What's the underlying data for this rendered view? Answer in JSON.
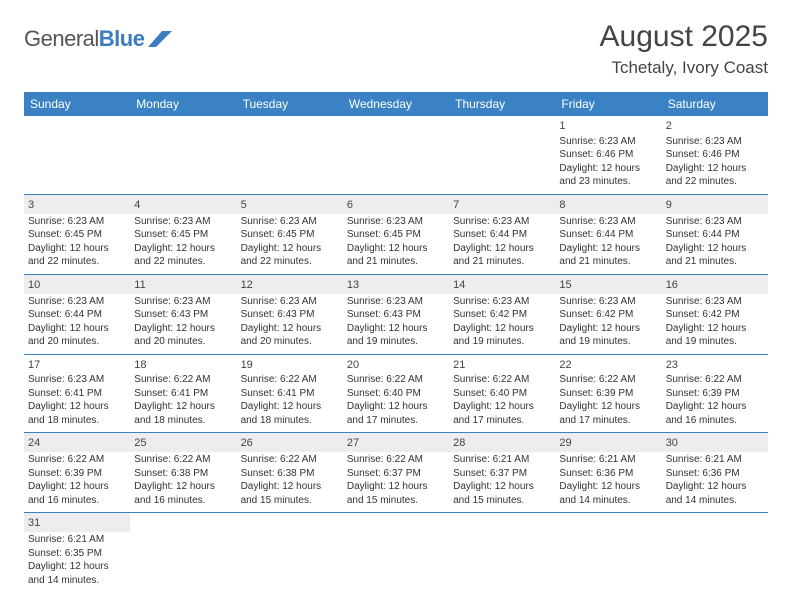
{
  "logo": {
    "text1": "General",
    "text2": "Blue"
  },
  "title": "August 2025",
  "location": "Tchetaly, Ivory Coast",
  "colors": {
    "header_bg": "#3b82c4",
    "header_text": "#ffffff",
    "shaded_cell": "#eceded",
    "row_border": "#3b82c4",
    "text": "#333333",
    "logo_blue": "#3b7bbf"
  },
  "day_headers": [
    "Sunday",
    "Monday",
    "Tuesday",
    "Wednesday",
    "Thursday",
    "Friday",
    "Saturday"
  ],
  "weeks": [
    [
      {
        "blank": true
      },
      {
        "blank": true
      },
      {
        "blank": true
      },
      {
        "blank": true
      },
      {
        "blank": true
      },
      {
        "day": "1",
        "sunrise": "Sunrise: 6:23 AM",
        "sunset": "Sunset: 6:46 PM",
        "daylight1": "Daylight: 12 hours",
        "daylight2": "and 23 minutes."
      },
      {
        "day": "2",
        "sunrise": "Sunrise: 6:23 AM",
        "sunset": "Sunset: 6:46 PM",
        "daylight1": "Daylight: 12 hours",
        "daylight2": "and 22 minutes."
      }
    ],
    [
      {
        "day": "3",
        "shaded": true,
        "sunrise": "Sunrise: 6:23 AM",
        "sunset": "Sunset: 6:45 PM",
        "daylight1": "Daylight: 12 hours",
        "daylight2": "and 22 minutes."
      },
      {
        "day": "4",
        "shaded": true,
        "sunrise": "Sunrise: 6:23 AM",
        "sunset": "Sunset: 6:45 PM",
        "daylight1": "Daylight: 12 hours",
        "daylight2": "and 22 minutes."
      },
      {
        "day": "5",
        "shaded": true,
        "sunrise": "Sunrise: 6:23 AM",
        "sunset": "Sunset: 6:45 PM",
        "daylight1": "Daylight: 12 hours",
        "daylight2": "and 22 minutes."
      },
      {
        "day": "6",
        "shaded": true,
        "sunrise": "Sunrise: 6:23 AM",
        "sunset": "Sunset: 6:45 PM",
        "daylight1": "Daylight: 12 hours",
        "daylight2": "and 21 minutes."
      },
      {
        "day": "7",
        "shaded": true,
        "sunrise": "Sunrise: 6:23 AM",
        "sunset": "Sunset: 6:44 PM",
        "daylight1": "Daylight: 12 hours",
        "daylight2": "and 21 minutes."
      },
      {
        "day": "8",
        "shaded": true,
        "sunrise": "Sunrise: 6:23 AM",
        "sunset": "Sunset: 6:44 PM",
        "daylight1": "Daylight: 12 hours",
        "daylight2": "and 21 minutes."
      },
      {
        "day": "9",
        "shaded": true,
        "sunrise": "Sunrise: 6:23 AM",
        "sunset": "Sunset: 6:44 PM",
        "daylight1": "Daylight: 12 hours",
        "daylight2": "and 21 minutes."
      }
    ],
    [
      {
        "day": "10",
        "shaded": true,
        "sunrise": "Sunrise: 6:23 AM",
        "sunset": "Sunset: 6:44 PM",
        "daylight1": "Daylight: 12 hours",
        "daylight2": "and 20 minutes."
      },
      {
        "day": "11",
        "shaded": true,
        "sunrise": "Sunrise: 6:23 AM",
        "sunset": "Sunset: 6:43 PM",
        "daylight1": "Daylight: 12 hours",
        "daylight2": "and 20 minutes."
      },
      {
        "day": "12",
        "shaded": true,
        "sunrise": "Sunrise: 6:23 AM",
        "sunset": "Sunset: 6:43 PM",
        "daylight1": "Daylight: 12 hours",
        "daylight2": "and 20 minutes."
      },
      {
        "day": "13",
        "shaded": true,
        "sunrise": "Sunrise: 6:23 AM",
        "sunset": "Sunset: 6:43 PM",
        "daylight1": "Daylight: 12 hours",
        "daylight2": "and 19 minutes."
      },
      {
        "day": "14",
        "shaded": true,
        "sunrise": "Sunrise: 6:23 AM",
        "sunset": "Sunset: 6:42 PM",
        "daylight1": "Daylight: 12 hours",
        "daylight2": "and 19 minutes."
      },
      {
        "day": "15",
        "shaded": true,
        "sunrise": "Sunrise: 6:23 AM",
        "sunset": "Sunset: 6:42 PM",
        "daylight1": "Daylight: 12 hours",
        "daylight2": "and 19 minutes."
      },
      {
        "day": "16",
        "shaded": true,
        "sunrise": "Sunrise: 6:23 AM",
        "sunset": "Sunset: 6:42 PM",
        "daylight1": "Daylight: 12 hours",
        "daylight2": "and 19 minutes."
      }
    ],
    [
      {
        "day": "17",
        "sunrise": "Sunrise: 6:23 AM",
        "sunset": "Sunset: 6:41 PM",
        "daylight1": "Daylight: 12 hours",
        "daylight2": "and 18 minutes."
      },
      {
        "day": "18",
        "sunrise": "Sunrise: 6:22 AM",
        "sunset": "Sunset: 6:41 PM",
        "daylight1": "Daylight: 12 hours",
        "daylight2": "and 18 minutes."
      },
      {
        "day": "19",
        "sunrise": "Sunrise: 6:22 AM",
        "sunset": "Sunset: 6:41 PM",
        "daylight1": "Daylight: 12 hours",
        "daylight2": "and 18 minutes."
      },
      {
        "day": "20",
        "sunrise": "Sunrise: 6:22 AM",
        "sunset": "Sunset: 6:40 PM",
        "daylight1": "Daylight: 12 hours",
        "daylight2": "and 17 minutes."
      },
      {
        "day": "21",
        "sunrise": "Sunrise: 6:22 AM",
        "sunset": "Sunset: 6:40 PM",
        "daylight1": "Daylight: 12 hours",
        "daylight2": "and 17 minutes."
      },
      {
        "day": "22",
        "sunrise": "Sunrise: 6:22 AM",
        "sunset": "Sunset: 6:39 PM",
        "daylight1": "Daylight: 12 hours",
        "daylight2": "and 17 minutes."
      },
      {
        "day": "23",
        "sunrise": "Sunrise: 6:22 AM",
        "sunset": "Sunset: 6:39 PM",
        "daylight1": "Daylight: 12 hours",
        "daylight2": "and 16 minutes."
      }
    ],
    [
      {
        "day": "24",
        "shaded": true,
        "sunrise": "Sunrise: 6:22 AM",
        "sunset": "Sunset: 6:39 PM",
        "daylight1": "Daylight: 12 hours",
        "daylight2": "and 16 minutes."
      },
      {
        "day": "25",
        "shaded": true,
        "sunrise": "Sunrise: 6:22 AM",
        "sunset": "Sunset: 6:38 PM",
        "daylight1": "Daylight: 12 hours",
        "daylight2": "and 16 minutes."
      },
      {
        "day": "26",
        "shaded": true,
        "sunrise": "Sunrise: 6:22 AM",
        "sunset": "Sunset: 6:38 PM",
        "daylight1": "Daylight: 12 hours",
        "daylight2": "and 15 minutes."
      },
      {
        "day": "27",
        "shaded": true,
        "sunrise": "Sunrise: 6:22 AM",
        "sunset": "Sunset: 6:37 PM",
        "daylight1": "Daylight: 12 hours",
        "daylight2": "and 15 minutes."
      },
      {
        "day": "28",
        "shaded": true,
        "sunrise": "Sunrise: 6:21 AM",
        "sunset": "Sunset: 6:37 PM",
        "daylight1": "Daylight: 12 hours",
        "daylight2": "and 15 minutes."
      },
      {
        "day": "29",
        "shaded": true,
        "sunrise": "Sunrise: 6:21 AM",
        "sunset": "Sunset: 6:36 PM",
        "daylight1": "Daylight: 12 hours",
        "daylight2": "and 14 minutes."
      },
      {
        "day": "30",
        "shaded": true,
        "sunrise": "Sunrise: 6:21 AM",
        "sunset": "Sunset: 6:36 PM",
        "daylight1": "Daylight: 12 hours",
        "daylight2": "and 14 minutes."
      }
    ],
    [
      {
        "day": "31",
        "shaded": true,
        "sunrise": "Sunrise: 6:21 AM",
        "sunset": "Sunset: 6:35 PM",
        "daylight1": "Daylight: 12 hours",
        "daylight2": "and 14 minutes."
      },
      {
        "blank": true
      },
      {
        "blank": true
      },
      {
        "blank": true
      },
      {
        "blank": true
      },
      {
        "blank": true
      },
      {
        "blank": true
      }
    ]
  ]
}
